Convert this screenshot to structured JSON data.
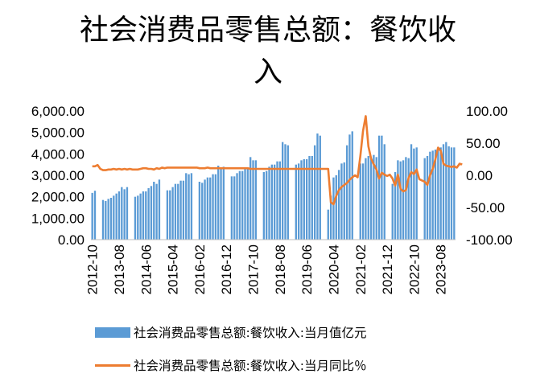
{
  "chart_data": {
    "type": "bar+line",
    "title_lines": [
      "社会消费品零售总额：餐饮收",
      "入"
    ],
    "y_left": {
      "ylim": [
        0,
        6000
      ],
      "ticks": [
        "0.00",
        "1,000.00",
        "2,000.00",
        "3,000.00",
        "4,000.00",
        "5,000.00",
        "6,000.00"
      ]
    },
    "y_right": {
      "ylim": [
        -100,
        100
      ],
      "ticks": [
        "-100.00",
        "-50.00",
        "0.00",
        "50.00",
        "100.00"
      ]
    },
    "x_tick_labels": [
      "2012-10",
      "2013-08",
      "2014-06",
      "2015-04",
      "2016-02",
      "2016-12",
      "2017-10",
      "2018-08",
      "2019-06",
      "2020-04",
      "2021-02",
      "2021-12",
      "2022-10",
      "2023-08"
    ],
    "x_start": "2012-10",
    "x_end": "2023-10",
    "series": [
      {
        "name": "社会消费品零售总额:餐饮收入:当月值亿元",
        "type": "bar",
        "color": "#5b9bd5",
        "values": [
          2180,
          2280,
          0,
          0,
          1850,
          1800,
          1900,
          1950,
          2050,
          2150,
          2250,
          2450,
          2350,
          2450,
          0,
          0,
          2000,
          2050,
          2150,
          2250,
          2250,
          2400,
          2500,
          2700,
          2600,
          2800,
          0,
          0,
          2300,
          2300,
          2450,
          2600,
          2600,
          2750,
          2750,
          3100,
          3050,
          3100,
          0,
          0,
          2700,
          2650,
          2800,
          2900,
          2900,
          3050,
          3050,
          3450,
          3300,
          3400,
          0,
          0,
          2950,
          2950,
          3100,
          3200,
          3200,
          3350,
          3350,
          3850,
          3700,
          3700,
          0,
          0,
          3150,
          3200,
          3400,
          3500,
          3500,
          3650,
          3650,
          4550,
          4450,
          4400,
          0,
          0,
          3500,
          3550,
          3700,
          3750,
          3750,
          3900,
          3900,
          4400,
          4950,
          4850,
          0,
          0,
          1400,
          2050,
          2900,
          3000,
          3250,
          3550,
          3600,
          4400,
          4900,
          5050,
          0,
          0,
          3550,
          3550,
          3800,
          3900,
          3750,
          3950,
          3850,
          4850,
          4850,
          4450,
          0,
          0,
          2600,
          3150,
          3700,
          3650,
          3700,
          3850,
          3800,
          4450,
          4250,
          4300,
          0,
          0,
          3800,
          3900,
          4100,
          4150,
          4200,
          4300,
          4300,
          4450,
          4550,
          4350,
          4300,
          4300
        ]
      },
      {
        "name": "社会消费品零售总额:餐饮收入:当月同比％",
        "type": "line",
        "color": "#ed7d31",
        "values": [
          14,
          14,
          16,
          10,
          8,
          8,
          9,
          9,
          10,
          9,
          10,
          9,
          10,
          9,
          10,
          9,
          9,
          9,
          10,
          11,
          11,
          10,
          10,
          9,
          11,
          10,
          12,
          11,
          12,
          12,
          12,
          12,
          12,
          12,
          12,
          12,
          12,
          12,
          12,
          12,
          11,
          11,
          11,
          12,
          11,
          11,
          11,
          11,
          11,
          11,
          11,
          11,
          11,
          11,
          11,
          11,
          11,
          11,
          11,
          10,
          10,
          10,
          10,
          10,
          10,
          10,
          10,
          10,
          10,
          10,
          10,
          10,
          10,
          10,
          10,
          10,
          10,
          10,
          10,
          10,
          10,
          10,
          10,
          10,
          10,
          10,
          10,
          10,
          10,
          -42,
          -45,
          -32,
          -23,
          -18,
          -15,
          -12,
          -7,
          -3,
          0,
          -3,
          30,
          69,
          92,
          45,
          26,
          17,
          9,
          -5,
          4,
          1,
          -1,
          1,
          -5,
          -16,
          1,
          -21,
          -25,
          -23,
          -4,
          5,
          2,
          9,
          -6,
          -8,
          -10,
          -15,
          0,
          10,
          25,
          43,
          38,
          18,
          15,
          14,
          13,
          14,
          12,
          18,
          17
        ]
      }
    ]
  },
  "legend": {
    "bar_label": "社会消费品零售总额:餐饮收入:当月值亿元",
    "line_label": "社会消费品零售总额:餐饮收入:当月同比％"
  }
}
